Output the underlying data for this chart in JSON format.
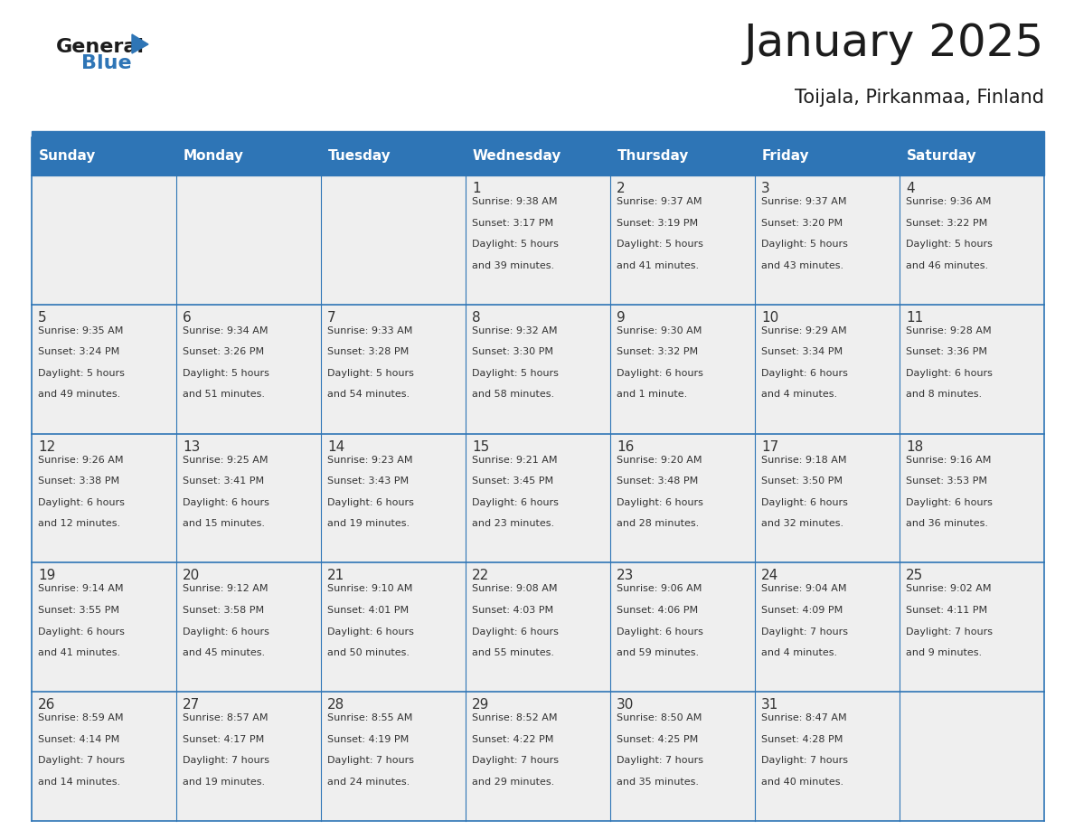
{
  "title": "January 2025",
  "subtitle": "Toijala, Pirkanmaa, Finland",
  "header_color": "#2E75B6",
  "header_text_color": "#FFFFFF",
  "cell_bg_color": "#EFEFEF",
  "border_color": "#2E75B6",
  "text_color": "#333333",
  "days_of_week": [
    "Sunday",
    "Monday",
    "Tuesday",
    "Wednesday",
    "Thursday",
    "Friday",
    "Saturday"
  ],
  "calendar_data": [
    [
      {
        "day": "",
        "sunrise": "",
        "sunset": "",
        "daylight": ""
      },
      {
        "day": "",
        "sunrise": "",
        "sunset": "",
        "daylight": ""
      },
      {
        "day": "",
        "sunrise": "",
        "sunset": "",
        "daylight": ""
      },
      {
        "day": "1",
        "sunrise": "9:38 AM",
        "sunset": "3:17 PM",
        "daylight": "5 hours\nand 39 minutes."
      },
      {
        "day": "2",
        "sunrise": "9:37 AM",
        "sunset": "3:19 PM",
        "daylight": "5 hours\nand 41 minutes."
      },
      {
        "day": "3",
        "sunrise": "9:37 AM",
        "sunset": "3:20 PM",
        "daylight": "5 hours\nand 43 minutes."
      },
      {
        "day": "4",
        "sunrise": "9:36 AM",
        "sunset": "3:22 PM",
        "daylight": "5 hours\nand 46 minutes."
      }
    ],
    [
      {
        "day": "5",
        "sunrise": "9:35 AM",
        "sunset": "3:24 PM",
        "daylight": "5 hours\nand 49 minutes."
      },
      {
        "day": "6",
        "sunrise": "9:34 AM",
        "sunset": "3:26 PM",
        "daylight": "5 hours\nand 51 minutes."
      },
      {
        "day": "7",
        "sunrise": "9:33 AM",
        "sunset": "3:28 PM",
        "daylight": "5 hours\nand 54 minutes."
      },
      {
        "day": "8",
        "sunrise": "9:32 AM",
        "sunset": "3:30 PM",
        "daylight": "5 hours\nand 58 minutes."
      },
      {
        "day": "9",
        "sunrise": "9:30 AM",
        "sunset": "3:32 PM",
        "daylight": "6 hours\nand 1 minute."
      },
      {
        "day": "10",
        "sunrise": "9:29 AM",
        "sunset": "3:34 PM",
        "daylight": "6 hours\nand 4 minutes."
      },
      {
        "day": "11",
        "sunrise": "9:28 AM",
        "sunset": "3:36 PM",
        "daylight": "6 hours\nand 8 minutes."
      }
    ],
    [
      {
        "day": "12",
        "sunrise": "9:26 AM",
        "sunset": "3:38 PM",
        "daylight": "6 hours\nand 12 minutes."
      },
      {
        "day": "13",
        "sunrise": "9:25 AM",
        "sunset": "3:41 PM",
        "daylight": "6 hours\nand 15 minutes."
      },
      {
        "day": "14",
        "sunrise": "9:23 AM",
        "sunset": "3:43 PM",
        "daylight": "6 hours\nand 19 minutes."
      },
      {
        "day": "15",
        "sunrise": "9:21 AM",
        "sunset": "3:45 PM",
        "daylight": "6 hours\nand 23 minutes."
      },
      {
        "day": "16",
        "sunrise": "9:20 AM",
        "sunset": "3:48 PM",
        "daylight": "6 hours\nand 28 minutes."
      },
      {
        "day": "17",
        "sunrise": "9:18 AM",
        "sunset": "3:50 PM",
        "daylight": "6 hours\nand 32 minutes."
      },
      {
        "day": "18",
        "sunrise": "9:16 AM",
        "sunset": "3:53 PM",
        "daylight": "6 hours\nand 36 minutes."
      }
    ],
    [
      {
        "day": "19",
        "sunrise": "9:14 AM",
        "sunset": "3:55 PM",
        "daylight": "6 hours\nand 41 minutes."
      },
      {
        "day": "20",
        "sunrise": "9:12 AM",
        "sunset": "3:58 PM",
        "daylight": "6 hours\nand 45 minutes."
      },
      {
        "day": "21",
        "sunrise": "9:10 AM",
        "sunset": "4:01 PM",
        "daylight": "6 hours\nand 50 minutes."
      },
      {
        "day": "22",
        "sunrise": "9:08 AM",
        "sunset": "4:03 PM",
        "daylight": "6 hours\nand 55 minutes."
      },
      {
        "day": "23",
        "sunrise": "9:06 AM",
        "sunset": "4:06 PM",
        "daylight": "6 hours\nand 59 minutes."
      },
      {
        "day": "24",
        "sunrise": "9:04 AM",
        "sunset": "4:09 PM",
        "daylight": "7 hours\nand 4 minutes."
      },
      {
        "day": "25",
        "sunrise": "9:02 AM",
        "sunset": "4:11 PM",
        "daylight": "7 hours\nand 9 minutes."
      }
    ],
    [
      {
        "day": "26",
        "sunrise": "8:59 AM",
        "sunset": "4:14 PM",
        "daylight": "7 hours\nand 14 minutes."
      },
      {
        "day": "27",
        "sunrise": "8:57 AM",
        "sunset": "4:17 PM",
        "daylight": "7 hours\nand 19 minutes."
      },
      {
        "day": "28",
        "sunrise": "8:55 AM",
        "sunset": "4:19 PM",
        "daylight": "7 hours\nand 24 minutes."
      },
      {
        "day": "29",
        "sunrise": "8:52 AM",
        "sunset": "4:22 PM",
        "daylight": "7 hours\nand 29 minutes."
      },
      {
        "day": "30",
        "sunrise": "8:50 AM",
        "sunset": "4:25 PM",
        "daylight": "7 hours\nand 35 minutes."
      },
      {
        "day": "31",
        "sunrise": "8:47 AM",
        "sunset": "4:28 PM",
        "daylight": "7 hours\nand 40 minutes."
      },
      {
        "day": "",
        "sunrise": "",
        "sunset": "",
        "daylight": ""
      }
    ]
  ]
}
